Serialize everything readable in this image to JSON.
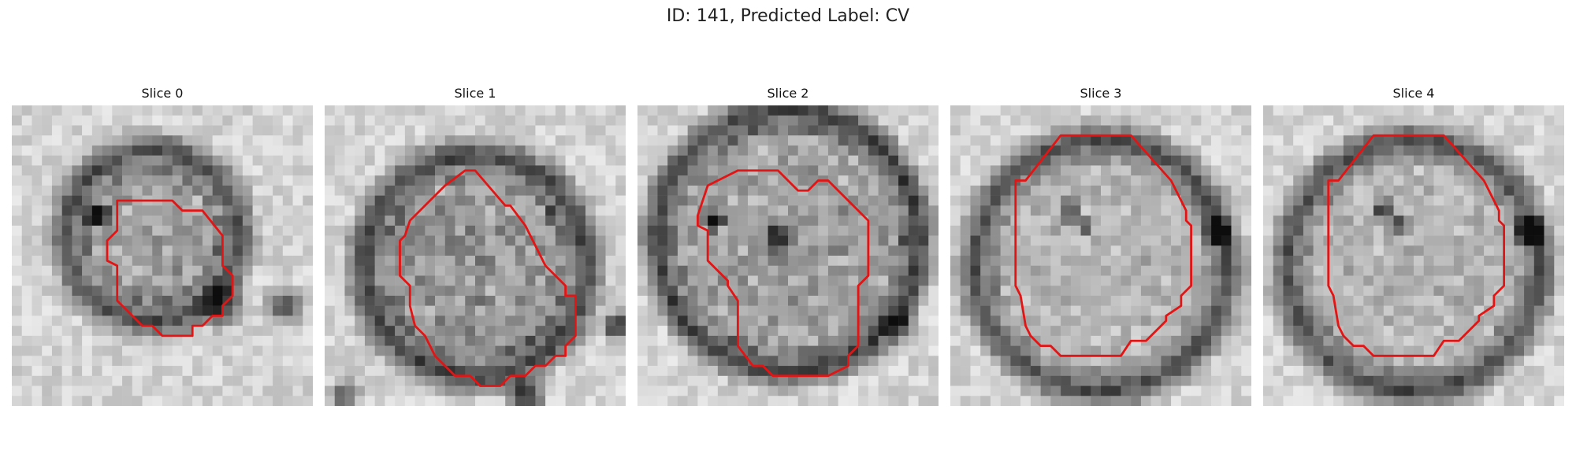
{
  "figure": {
    "title": "ID: 141, Predicted Label: CV"
  },
  "panels": [
    {
      "title": "Slice 0"
    },
    {
      "title": "Slice 1"
    },
    {
      "title": "Slice 2"
    },
    {
      "title": "Slice 3"
    },
    {
      "title": "Slice 4"
    }
  ],
  "colors": {
    "contour": "#e41414",
    "background": "#ffffff"
  }
}
